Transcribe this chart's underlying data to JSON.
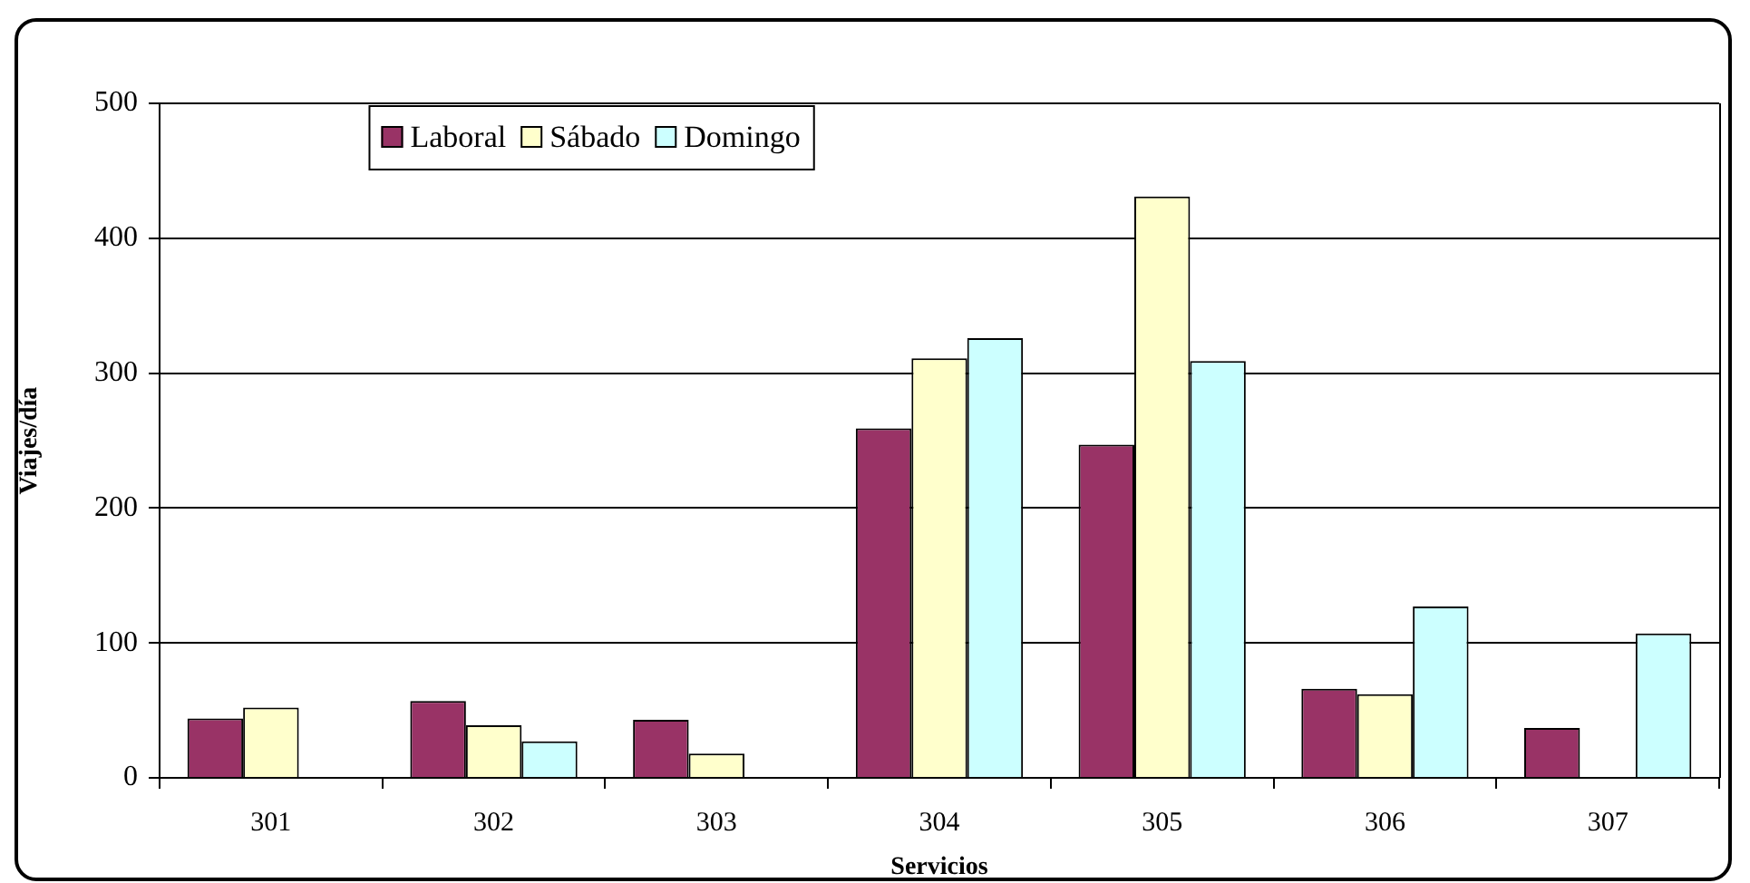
{
  "chart_data": {
    "type": "bar",
    "xlabel": "Servicios",
    "ylabel": "Viajes/día",
    "categories": [
      "301",
      "302",
      "303",
      "304",
      "305",
      "306",
      "307"
    ],
    "series": [
      {
        "name": "Laboral",
        "color": "#993366",
        "values": [
          44,
          57,
          43,
          259,
          247,
          66,
          37
        ]
      },
      {
        "name": "Sábado",
        "color": "#ffffcc",
        "values": [
          52,
          39,
          18,
          311,
          431,
          62,
          null
        ]
      },
      {
        "name": "Domingo",
        "color": "#ccffff",
        "values": [
          null,
          27,
          null,
          326,
          309,
          127,
          107
        ]
      }
    ],
    "ylim": [
      0,
      500
    ],
    "yticks": [
      0,
      100,
      200,
      300,
      400,
      500
    ],
    "grid": "y",
    "legend": "top left"
  }
}
